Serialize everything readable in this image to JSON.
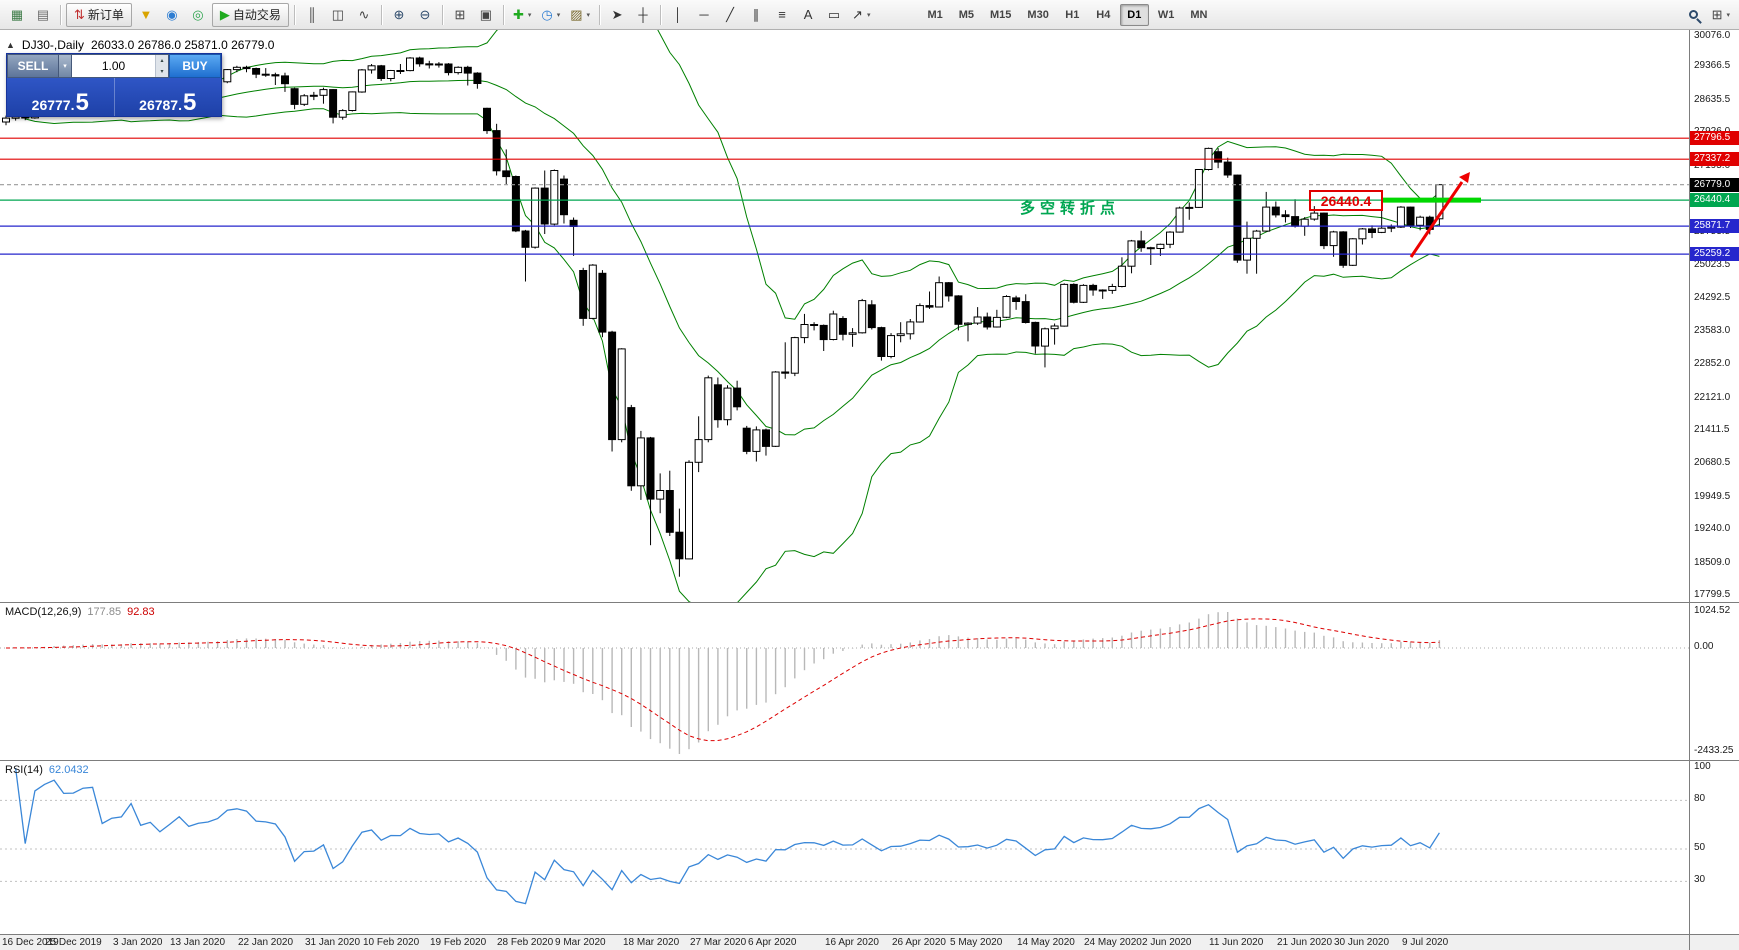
{
  "toolbar": {
    "timeframes": [
      "M1",
      "M5",
      "M15",
      "M30",
      "H1",
      "H4",
      "D1",
      "W1",
      "MN"
    ],
    "active_timeframe": "D1",
    "items": [
      {
        "t": "icon",
        "name": "chart-window-icon",
        "glyph": "▦",
        "color": "#3c7a46"
      },
      {
        "t": "icon",
        "name": "profiles-icon",
        "glyph": "▤",
        "color": "#6b6b6b"
      },
      {
        "t": "sep"
      },
      {
        "t": "icon",
        "name": "new-order-button",
        "glyph": "⇅",
        "color": "#c03030",
        "label": "新订单"
      },
      {
        "t": "icon",
        "name": "funnel-icon",
        "glyph": "▼",
        "color": "#d9a400"
      },
      {
        "t": "icon",
        "name": "market-icon",
        "glyph": "◉",
        "color": "#2d7dd2"
      },
      {
        "t": "icon",
        "name": "community-icon",
        "glyph": "◎",
        "color": "#2da44e"
      },
      {
        "t": "icon",
        "name": "auto-trading-button",
        "glyph": "▶",
        "color": "#1faa1f",
        "label": "自动交易"
      },
      {
        "t": "sep"
      },
      {
        "t": "icon",
        "name": "ohlc-bars-icon",
        "glyph": "║",
        "color": "#444444"
      },
      {
        "t": "icon",
        "name": "candlestick-icon",
        "glyph": "◫",
        "color": "#444444"
      },
      {
        "t": "icon",
        "name": "line-chart-icon",
        "glyph": "∿",
        "color": "#444444"
      },
      {
        "t": "sep"
      },
      {
        "t": "icon",
        "name": "zoom-in-icon",
        "glyph": "⊕",
        "color": "#2d4a6b"
      },
      {
        "t": "icon",
        "name": "zoom-out-icon",
        "glyph": "⊖",
        "color": "#2d4a6b"
      },
      {
        "t": "sep"
      },
      {
        "t": "icon",
        "name": "tile-windows-icon",
        "glyph": "⊞",
        "color": "#444444"
      },
      {
        "t": "icon",
        "name": "cascade-windows-icon",
        "glyph": "▣",
        "color": "#444444"
      },
      {
        "t": "sep"
      },
      {
        "t": "icon",
        "name": "new-chart-plus-icon",
        "glyph": "✚",
        "color": "#1faa1f",
        "caret": true
      },
      {
        "t": "icon",
        "name": "periods-clock-icon",
        "glyph": "◷",
        "color": "#2d7dd2",
        "caret": true
      },
      {
        "t": "icon",
        "name": "templates-icon",
        "glyph": "▨",
        "color": "#7a6a2f",
        "caret": true
      },
      {
        "t": "sep"
      },
      {
        "t": "icon",
        "name": "cursor-icon",
        "glyph": "➤",
        "color": "#333333"
      },
      {
        "t": "icon",
        "name": "crosshair-icon",
        "glyph": "┼",
        "color": "#333333"
      },
      {
        "t": "sep"
      },
      {
        "t": "icon",
        "name": "vertical-line-icon",
        "glyph": "│",
        "color": "#333333"
      },
      {
        "t": "icon",
        "name": "horizontal-line-icon",
        "glyph": "─",
        "color": "#333333"
      },
      {
        "t": "icon",
        "name": "trendline-icon",
        "glyph": "╱",
        "color": "#333333"
      },
      {
        "t": "icon",
        "name": "channel-icon",
        "glyph": "∥",
        "color": "#333333"
      },
      {
        "t": "icon",
        "name": "fibonacci-icon",
        "glyph": "≡",
        "color": "#333333"
      },
      {
        "t": "icon",
        "name": "text-icon",
        "glyph": "A",
        "color": "#333333"
      },
      {
        "t": "icon",
        "name": "label-icon",
        "glyph": "▭",
        "color": "#333333"
      },
      {
        "t": "icon",
        "name": "arrows-icon",
        "glyph": "↗",
        "color": "#333333",
        "caret": true
      },
      {
        "t": "gap",
        "w": 40
      },
      {
        "t": "tf"
      },
      {
        "t": "spring"
      },
      {
        "t": "search",
        "name": "search-icon"
      },
      {
        "t": "icon",
        "name": "chart-layout-icon",
        "glyph": "⊞",
        "color": "#444444",
        "caret": true
      }
    ]
  },
  "chart": {
    "collapse_glyph": "▲",
    "title": "DJ30-,Daily",
    "ohlc": "26033.0 26786.0 25871.0 26779.0"
  },
  "trade_panel": {
    "sell_label": "SELL",
    "buy_label": "BUY",
    "volume": "1.00",
    "sell_price": "26777.",
    "sell_price_big": "5",
    "buy_price": "26787.",
    "buy_price_big": "5"
  },
  "levels": [
    {
      "label": "27796.5",
      "price": 27796.5,
      "color": "#e00000"
    },
    {
      "label": "27337.2",
      "price": 27337.2,
      "color": "#e00000"
    },
    {
      "label": "26779.0",
      "price": 26779.0,
      "color": "#000000",
      "current": true
    },
    {
      "label": "26440.4",
      "price": 26440.4,
      "color": "#00a650"
    },
    {
      "label": "25871.7",
      "price": 25871.7,
      "color": "#2626cc"
    },
    {
      "label": "25259.2",
      "price": 25259.2,
      "color": "#2626cc"
    }
  ],
  "annotations": {
    "turning_point_text": "多空转折点",
    "price_box_label": "26440.4",
    "text_color": "#00a651",
    "box_color": "#e00000",
    "thick_line_color": "#00d800",
    "arrow_color": "#ee0000"
  },
  "macd": {
    "name": "MACD(12,26,9)",
    "value_main": "177.85",
    "value_signal": "92.83",
    "axis": [
      "1024.52",
      "0.00",
      "-2433.25"
    ]
  },
  "rsi": {
    "name": "RSI(14)",
    "value": "62.0432",
    "axis": [
      "100",
      "80",
      "50",
      "30"
    ],
    "levels": [
      80,
      50,
      30
    ]
  },
  "colors": {
    "bollinger": "#008000",
    "bull_candle": "#ffffff",
    "bear_candle": "#000000",
    "macd_histogram": "#b8b8b8",
    "macd_signal": "#dd0000",
    "rsi_line": "#3a87d8",
    "panel_blue": "#2a52c8",
    "buy_blue": "#2f7fe0"
  },
  "chart_data": {
    "type": "candlestick",
    "symbol": "DJ30-",
    "period": "Daily",
    "last_ohlc": {
      "open": 26033.0,
      "high": 26786.0,
      "low": 25871.0,
      "close": 26779.0
    },
    "y_range": [
      17799.5,
      30076.0
    ],
    "overlays": {
      "bollinger": {
        "period": 20,
        "deviation": 2
      }
    },
    "indicators": [
      {
        "type": "MACD",
        "params": [
          12,
          26,
          9
        ],
        "values": [
          177.85,
          92.83
        ]
      },
      {
        "type": "RSI",
        "params": [
          14
        ],
        "value": 62.0432
      }
    ],
    "y_ticks": [
      "30076.0",
      "29366.5",
      "28635.5",
      "27926.0",
      "27195.0",
      "26484.5",
      "25753.5",
      "25023.5",
      "24292.5",
      "23583.0",
      "22852.0",
      "22121.0",
      "21411.5",
      "20680.5",
      "19949.5",
      "19240.0",
      "18509.0",
      "17799.5"
    ],
    "x_labels": [
      [
        "16 Dec 2019",
        0
      ],
      [
        "25 Dec 2019",
        7
      ],
      [
        "3 Jan 2020",
        14
      ],
      [
        "13 Jan 2020",
        20
      ],
      [
        "22 Jan 2020",
        27
      ],
      [
        "31 Jan 2020",
        34
      ],
      [
        "10 Feb 2020",
        40
      ],
      [
        "19 Feb 2020",
        47
      ],
      [
        "28 Feb 2020",
        54
      ],
      [
        "9 Mar 2020",
        60
      ],
      [
        "18 Mar 2020",
        67
      ],
      [
        "27 Mar 2020",
        74
      ],
      [
        "6 Apr 2020",
        80
      ],
      [
        "16 Apr 2020",
        88
      ],
      [
        "26 Apr 2020",
        95
      ],
      [
        "5 May 2020",
        101
      ],
      [
        "14 May 2020",
        108
      ],
      [
        "24 May 2020",
        115
      ],
      [
        "2 Jun 2020",
        121
      ],
      [
        "11 Jun 2020",
        128
      ],
      [
        "21 Jun 2020",
        135
      ],
      [
        "30 Jun 2020",
        141
      ],
      [
        "9 Jul 2020",
        148
      ]
    ],
    "candles": [
      [
        28150,
        28290,
        28080,
        28235
      ],
      [
        28235,
        28320,
        28180,
        28267
      ],
      [
        28267,
        28310,
        28190,
        28239
      ],
      [
        28239,
        28400,
        28220,
        28377
      ],
      [
        28377,
        28510,
        28350,
        28455
      ],
      [
        28455,
        28580,
        28420,
        28551
      ],
      [
        28551,
        28600,
        28490,
        28515
      ],
      [
        28515,
        28560,
        28470,
        28520
      ],
      [
        28520,
        28650,
        28500,
        28621
      ],
      [
        28621,
        28700,
        28550,
        28645
      ],
      [
        28645,
        28680,
        28410,
        28462
      ],
      [
        28462,
        28560,
        28390,
        28538
      ],
      [
        28538,
        28610,
        28460,
        28560
      ],
      [
        28560,
        28880,
        28530,
        28868
      ],
      [
        28868,
        28890,
        28610,
        28634
      ],
      [
        28634,
        28720,
        28420,
        28703
      ],
      [
        28703,
        28740,
        28540,
        28583
      ],
      [
        28583,
        28760,
        28440,
        28745
      ],
      [
        28745,
        28960,
        28730,
        28956
      ],
      [
        28956,
        29010,
        28790,
        28823
      ],
      [
        28823,
        28920,
        28780,
        28907
      ],
      [
        28907,
        28960,
        28810,
        28939
      ],
      [
        28939,
        29040,
        28860,
        29030
      ],
      [
        29030,
        29310,
        29000,
        29297
      ],
      [
        29297,
        29380,
        29240,
        29348
      ],
      [
        29348,
        29380,
        29240,
        29320
      ],
      [
        29320,
        29340,
        29110,
        29196
      ],
      [
        29196,
        29330,
        29140,
        29186
      ],
      [
        29186,
        29230,
        28960,
        29160
      ],
      [
        29160,
        29230,
        28810,
        28990
      ],
      [
        28880,
        28900,
        28430,
        28536
      ],
      [
        28536,
        28760,
        28500,
        28723
      ],
      [
        28723,
        28810,
        28630,
        28734
      ],
      [
        28734,
        28900,
        28550,
        28859
      ],
      [
        28859,
        28870,
        28120,
        28256
      ],
      [
        28256,
        28430,
        28200,
        28400
      ],
      [
        28400,
        28820,
        28380,
        28808
      ],
      [
        28808,
        29310,
        28790,
        29291
      ],
      [
        29291,
        29420,
        29210,
        29380
      ],
      [
        29380,
        29400,
        29050,
        29103
      ],
      [
        29103,
        29290,
        29040,
        29277
      ],
      [
        29277,
        29420,
        29200,
        29276
      ],
      [
        29276,
        29570,
        29260,
        29551
      ],
      [
        29551,
        29580,
        29360,
        29423
      ],
      [
        29423,
        29490,
        29320,
        29398
      ],
      [
        29398,
        29460,
        29340,
        29420
      ],
      [
        29420,
        29440,
        29170,
        29232
      ],
      [
        29232,
        29370,
        29190,
        29348
      ],
      [
        29348,
        29380,
        28950,
        29220
      ],
      [
        29220,
        29240,
        28880,
        28992
      ],
      [
        28450,
        28460,
        27890,
        27961
      ],
      [
        27961,
        28110,
        26980,
        27081
      ],
      [
        27081,
        27550,
        26790,
        26957
      ],
      [
        26957,
        26980,
        25740,
        25766
      ],
      [
        25766,
        25790,
        24660,
        25409
      ],
      [
        25409,
        26720,
        25380,
        26703
      ],
      [
        26703,
        27090,
        25700,
        25917
      ],
      [
        25917,
        27110,
        25890,
        27090
      ],
      [
        26900,
        26980,
        25930,
        26121
      ],
      [
        26000,
        26060,
        25220,
        25864
      ],
      [
        24900,
        24960,
        23690,
        23851
      ],
      [
        23851,
        25040,
        23830,
        25018
      ],
      [
        24840,
        24910,
        23440,
        23553
      ],
      [
        23553,
        23580,
        20940,
        21200
      ],
      [
        21200,
        23200,
        21140,
        23185
      ],
      [
        21900,
        21960,
        20080,
        20188
      ],
      [
        20188,
        21390,
        19880,
        21237
      ],
      [
        21237,
        21260,
        18890,
        19898
      ],
      [
        19898,
        20460,
        19590,
        20087
      ],
      [
        20087,
        20520,
        19090,
        19173
      ],
      [
        19173,
        19690,
        18200,
        18591
      ],
      [
        18591,
        20750,
        18580,
        20704
      ],
      [
        20704,
        21710,
        20490,
        21200
      ],
      [
        21200,
        22600,
        21140,
        22552
      ],
      [
        22400,
        22560,
        21460,
        21636
      ],
      [
        21636,
        22390,
        21510,
        22327
      ],
      [
        22327,
        22490,
        21840,
        21917
      ],
      [
        21450,
        21500,
        20880,
        20943
      ],
      [
        20943,
        21490,
        20720,
        21413
      ],
      [
        21413,
        21440,
        20850,
        21052
      ],
      [
        21052,
        22700,
        21040,
        22679
      ],
      [
        22679,
        23330,
        22530,
        22653
      ],
      [
        22653,
        23450,
        22590,
        23433
      ],
      [
        23433,
        23950,
        23310,
        23719
      ],
      [
        23719,
        23770,
        23590,
        23700
      ],
      [
        23700,
        23720,
        23140,
        23390
      ],
      [
        23390,
        24020,
        23370,
        23949
      ],
      [
        23850,
        23900,
        23370,
        23504
      ],
      [
        23504,
        23640,
        23230,
        23537
      ],
      [
        23537,
        24280,
        23520,
        24242
      ],
      [
        24150,
        24250,
        23610,
        23650
      ],
      [
        23650,
        23670,
        22930,
        23018
      ],
      [
        23018,
        23530,
        22980,
        23475
      ],
      [
        23475,
        23770,
        23330,
        23515
      ],
      [
        23515,
        23840,
        23390,
        23775
      ],
      [
        23775,
        24180,
        23760,
        24133
      ],
      [
        24133,
        24440,
        24060,
        24101
      ],
      [
        24101,
        24770,
        24090,
        24633
      ],
      [
        24633,
        24650,
        24220,
        24345
      ],
      [
        24345,
        24360,
        23590,
        23723
      ],
      [
        23723,
        23770,
        23350,
        23749
      ],
      [
        23749,
        24100,
        23710,
        23883
      ],
      [
        23883,
        23980,
        23610,
        23664
      ],
      [
        23664,
        24040,
        23650,
        23875
      ],
      [
        23875,
        24360,
        23860,
        24331
      ],
      [
        24300,
        24350,
        24040,
        24221
      ],
      [
        24221,
        24380,
        23740,
        23764
      ],
      [
        23764,
        23780,
        23080,
        23247
      ],
      [
        23247,
        23650,
        22780,
        23625
      ],
      [
        23625,
        23740,
        23280,
        23685
      ],
      [
        23685,
        24620,
        23670,
        24597
      ],
      [
        24597,
        24620,
        24180,
        24206
      ],
      [
        24206,
        24600,
        24190,
        24575
      ],
      [
        24575,
        24610,
        24350,
        24474
      ],
      [
        24474,
        24490,
        24280,
        24465
      ],
      [
        24465,
        24610,
        24390,
        24550
      ],
      [
        24550,
        25190,
        24530,
        24995
      ],
      [
        24995,
        25570,
        24840,
        25548
      ],
      [
        25548,
        25770,
        25310,
        25400
      ],
      [
        25400,
        25420,
        25020,
        25383
      ],
      [
        25383,
        25490,
        25220,
        25475
      ],
      [
        25475,
        25760,
        25390,
        25742
      ],
      [
        25742,
        26300,
        25730,
        26269
      ],
      [
        26269,
        26390,
        26010,
        26281
      ],
      [
        26281,
        27120,
        26270,
        27110
      ],
      [
        27110,
        27590,
        27090,
        27572
      ],
      [
        27500,
        27580,
        27140,
        27272
      ],
      [
        27272,
        27370,
        26930,
        26989
      ],
      [
        26989,
        27000,
        25070,
        25128
      ],
      [
        25128,
        25970,
        24830,
        25605
      ],
      [
        25605,
        25790,
        24830,
        25763
      ],
      [
        25763,
        26620,
        25750,
        26289
      ],
      [
        26289,
        26410,
        26060,
        26119
      ],
      [
        26119,
        26220,
        25950,
        26080
      ],
      [
        26080,
        26460,
        25840,
        25871
      ],
      [
        25871,
        26070,
        25660,
        26024
      ],
      [
        26024,
        26310,
        25990,
        26156
      ],
      [
        26156,
        26170,
        25370,
        25445
      ],
      [
        25445,
        25770,
        25200,
        25745
      ],
      [
        25745,
        25760,
        24960,
        25015
      ],
      [
        25015,
        25610,
        25000,
        25595
      ],
      [
        25595,
        25830,
        25470,
        25812
      ],
      [
        25812,
        25890,
        25610,
        25734
      ],
      [
        25734,
        26210,
        25720,
        25827
      ],
      [
        25827,
        25910,
        25740,
        25850
      ],
      [
        25850,
        26310,
        25830,
        26287
      ],
      [
        26287,
        26300,
        25830,
        25890
      ],
      [
        25890,
        26100,
        25780,
        26067
      ],
      [
        26067,
        26100,
        25690,
        25800
      ],
      [
        26033,
        26786,
        25871,
        26779
      ]
    ]
  }
}
